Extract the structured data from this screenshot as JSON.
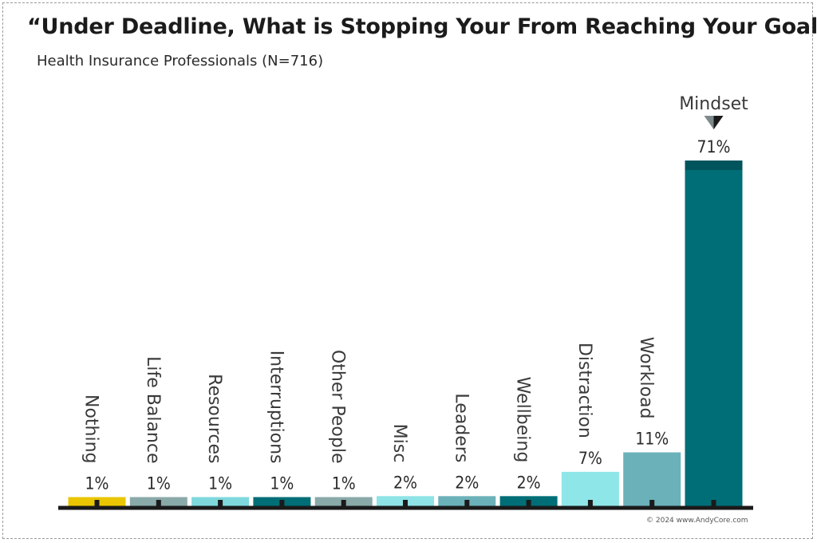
{
  "header": {
    "title": "“Under Deadline, What is Stopping Your From Reaching Your Goals?”",
    "subtitle": "Health Insurance Professionals (N=716)"
  },
  "footer": {
    "copyright": "© 2024 www.AndyCore.com"
  },
  "highlight": {
    "label": "Mindset"
  },
  "chart_data": {
    "type": "bar",
    "title": "“Under Deadline, What is Stopping Your From Reaching Your Goals?”",
    "subtitle": "Health Insurance Professionals (N=716)",
    "categories": [
      "Nothing",
      "Life Balance",
      "Resources",
      "Interruptions",
      "Other People",
      "Misc",
      "Leaders",
      "Wellbeing",
      "Distraction",
      "Workload",
      "Mindset"
    ],
    "values": [
      1,
      1,
      1,
      1,
      1,
      2,
      2,
      2,
      7,
      11,
      71
    ],
    "value_labels": [
      "1%",
      "1%",
      "1%",
      "1%",
      "1%",
      "2%",
      "2%",
      "2%",
      "7%",
      "11%",
      "71%"
    ],
    "colors": [
      "#e9c600",
      "#8aa9a9",
      "#7ed8dc",
      "#006e76",
      "#8aa9a9",
      "#8ee3e6",
      "#6bb1b9",
      "#006e76",
      "#8fe6e8",
      "#6bb1b9",
      "#006e76"
    ],
    "ylim": [
      0,
      71
    ],
    "xlabel": "",
    "ylabel": "",
    "grid": false,
    "legend": "none"
  }
}
